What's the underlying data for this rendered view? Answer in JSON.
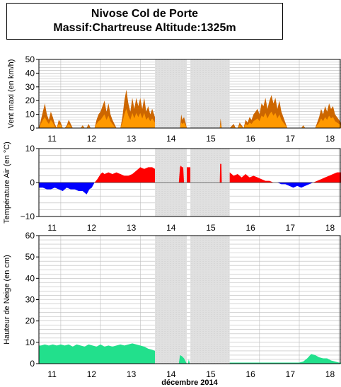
{
  "header": {
    "title": "Nivose Col de Porte",
    "subtitle": "Massif:Chartreuse Altitude:1325m"
  },
  "colors": {
    "wind_max": "#cc6600",
    "wind_mean": "#ff9900",
    "temp_pos": "#ff0000",
    "temp_neg": "#0000ff",
    "snow": "#22e08c",
    "missing": "#e0e0e0",
    "grid": "#bbbbbb"
  },
  "x_axis": {
    "label": "décembre 2014",
    "day_labels": [
      "11",
      "12",
      "13",
      "14",
      "15",
      "16",
      "17",
      "18"
    ],
    "day_values": [
      11,
      12,
      13,
      14,
      15,
      16,
      17,
      18
    ],
    "range": [
      10.45,
      18.05
    ]
  },
  "chart_data": [
    {
      "type": "area",
      "id": "wind",
      "ylabel": "Vent maxi (en km/h)",
      "ylim": [
        0,
        50
      ],
      "yticks": [
        0,
        10,
        20,
        30,
        40,
        50
      ],
      "grid": true,
      "missing_intervals": [
        [
          13.37,
          14.17
        ],
        [
          14.26,
          15.25
        ]
      ],
      "series": [
        {
          "role": "max",
          "x": [
            10.45,
            10.55,
            10.6,
            10.65,
            10.7,
            10.75,
            10.8,
            10.85,
            10.9,
            10.95,
            11.0,
            11.05,
            11.1,
            11.15,
            11.2,
            11.25,
            11.3,
            11.4,
            11.5,
            11.55,
            11.6,
            11.65,
            11.7,
            11.75,
            11.8,
            11.85,
            11.9,
            11.95,
            12.0,
            12.05,
            12.1,
            12.15,
            12.2,
            12.25,
            12.3,
            12.35,
            12.4,
            12.5,
            12.55,
            12.6,
            12.65,
            12.7,
            12.75,
            12.8,
            12.85,
            12.9,
            12.95,
            13.0,
            13.05,
            13.1,
            13.15,
            13.2,
            13.25,
            13.3,
            13.37
          ],
          "values": [
            0,
            12,
            18,
            10,
            6,
            12,
            8,
            3,
            0,
            6,
            4,
            0,
            0,
            2,
            6,
            3,
            0,
            0,
            0,
            2,
            0,
            0,
            3,
            0,
            0,
            0,
            6,
            10,
            12,
            16,
            20,
            12,
            18,
            10,
            6,
            3,
            0,
            0,
            8,
            20,
            28,
            18,
            12,
            22,
            14,
            22,
            16,
            22,
            14,
            22,
            12,
            16,
            10,
            14,
            8
          ]
        },
        {
          "role": "mean",
          "x": [
            10.45,
            10.55,
            10.6,
            10.65,
            10.7,
            10.75,
            10.8,
            10.85,
            10.9,
            10.95,
            11.0,
            11.05,
            11.1,
            11.15,
            11.2,
            11.25,
            11.3,
            11.4,
            11.5,
            11.55,
            11.6,
            11.65,
            11.7,
            11.75,
            11.8,
            11.85,
            11.9,
            11.95,
            12.0,
            12.05,
            12.1,
            12.15,
            12.2,
            12.25,
            12.3,
            12.35,
            12.4,
            12.5,
            12.55,
            12.6,
            12.65,
            12.7,
            12.75,
            12.8,
            12.85,
            12.9,
            12.95,
            13.0,
            13.05,
            13.1,
            13.15,
            13.2,
            13.25,
            13.3,
            13.37
          ],
          "values": [
            0,
            6,
            8,
            5,
            3,
            6,
            4,
            1,
            0,
            3,
            2,
            0,
            0,
            1,
            3,
            1,
            0,
            0,
            0,
            1,
            0,
            0,
            1,
            0,
            0,
            0,
            3,
            5,
            6,
            8,
            10,
            6,
            9,
            5,
            3,
            1,
            0,
            0,
            4,
            10,
            14,
            9,
            6,
            11,
            7,
            11,
            8,
            11,
            7,
            11,
            6,
            8,
            5,
            7,
            4
          ]
        },
        {
          "role": "max-b",
          "x": [
            14.0,
            14.03,
            14.06,
            14.1,
            14.14,
            14.17
          ],
          "values": [
            0,
            10,
            6,
            8,
            4,
            0
          ]
        },
        {
          "role": "mean-b",
          "x": [
            14.0,
            14.03,
            14.06,
            14.1,
            14.14,
            14.17
          ],
          "values": [
            0,
            4,
            3,
            4,
            2,
            0
          ]
        },
        {
          "role": "max-c",
          "x": [
            15.0,
            15.02,
            15.05
          ],
          "values": [
            0,
            7,
            0
          ]
        },
        {
          "role": "mean-c",
          "x": [
            15.0,
            15.02,
            15.05
          ],
          "values": [
            0,
            3,
            0
          ]
        },
        {
          "role": "max-d",
          "x": [
            15.25,
            15.35,
            15.4,
            15.45,
            15.5,
            15.55,
            15.6,
            15.65,
            15.7,
            15.75,
            15.8,
            15.85,
            15.9,
            15.95,
            16.0,
            16.05,
            16.1,
            16.15,
            16.2,
            16.25,
            16.3,
            16.35,
            16.4,
            16.45,
            16.5,
            16.55,
            16.6,
            16.65,
            16.7,
            16.75,
            16.8,
            16.85,
            16.9,
            16.95,
            17.0,
            17.05,
            17.1,
            17.15,
            17.2,
            17.25,
            17.3,
            17.35,
            17.4,
            17.45,
            17.5,
            17.55,
            17.6,
            17.65,
            17.7,
            17.75,
            17.8,
            17.85,
            17.9,
            17.95,
            18.0,
            18.05
          ],
          "values": [
            0,
            3,
            0,
            0,
            4,
            2,
            0,
            6,
            4,
            8,
            6,
            10,
            12,
            14,
            10,
            18,
            16,
            22,
            14,
            20,
            24,
            18,
            22,
            14,
            20,
            12,
            8,
            4,
            0,
            0,
            0,
            0,
            0,
            0,
            0,
            0,
            2,
            0,
            0,
            0,
            0,
            0,
            0,
            4,
            8,
            14,
            10,
            16,
            12,
            18,
            14,
            16,
            10,
            8,
            6,
            4
          ]
        },
        {
          "role": "mean-d",
          "x": [
            15.25,
            15.35,
            15.4,
            15.45,
            15.5,
            15.55,
            15.6,
            15.65,
            15.7,
            15.75,
            15.8,
            15.85,
            15.9,
            15.95,
            16.0,
            16.05,
            16.1,
            16.15,
            16.2,
            16.25,
            16.3,
            16.35,
            16.4,
            16.45,
            16.5,
            16.55,
            16.6,
            16.65,
            16.7,
            16.75,
            16.8,
            16.85,
            16.9,
            16.95,
            17.0,
            17.05,
            17.1,
            17.15,
            17.2,
            17.25,
            17.3,
            17.35,
            17.4,
            17.45,
            17.5,
            17.55,
            17.6,
            17.65,
            17.7,
            17.75,
            17.8,
            17.85,
            17.9,
            17.95,
            18.0,
            18.05
          ],
          "values": [
            0,
            1,
            0,
            0,
            2,
            1,
            0,
            3,
            2,
            4,
            3,
            5,
            6,
            7,
            5,
            9,
            8,
            11,
            7,
            10,
            12,
            9,
            11,
            7,
            10,
            6,
            4,
            2,
            0,
            0,
            0,
            0,
            0,
            0,
            0,
            0,
            1,
            0,
            0,
            0,
            0,
            0,
            0,
            2,
            4,
            7,
            5,
            8,
            6,
            9,
            7,
            8,
            5,
            4,
            3,
            2
          ]
        }
      ]
    },
    {
      "type": "area",
      "id": "temperature",
      "ylabel": "Température Air (en °C)",
      "ylim": [
        -10,
        10
      ],
      "yticks": [
        -10,
        0,
        10
      ],
      "grid": true,
      "missing_intervals": [
        [
          13.37,
          14.17
        ],
        [
          14.26,
          15.25
        ]
      ],
      "series": [
        {
          "role": "temp-a",
          "x": [
            10.45,
            10.55,
            10.65,
            10.75,
            10.85,
            10.95,
            11.05,
            11.15,
            11.25,
            11.35,
            11.45,
            11.55,
            11.65,
            11.72,
            11.78,
            11.85,
            11.92,
            12.0,
            12.05,
            12.1,
            12.2,
            12.3,
            12.4,
            12.5,
            12.6,
            12.7,
            12.8,
            12.9,
            13.0,
            13.1,
            13.2,
            13.3,
            13.37
          ],
          "values": [
            -1.5,
            -1.5,
            -2.0,
            -2.0,
            -1.5,
            -2.0,
            -2.5,
            -1.5,
            -2.0,
            -2.0,
            -2.5,
            -2.5,
            -3.5,
            -2.0,
            -1.5,
            0.0,
            1.0,
            2.5,
            3.0,
            2.5,
            3.0,
            2.5,
            3.0,
            2.5,
            2.0,
            2.0,
            2.5,
            3.5,
            4.5,
            4.0,
            4.5,
            4.5,
            4.0
          ]
        },
        {
          "role": "temp-b",
          "x": [
            13.97,
            14.0,
            14.02,
            14.05,
            14.08,
            14.1
          ],
          "values": [
            0,
            4.5,
            5.0,
            4.5,
            4.5,
            0
          ]
        },
        {
          "role": "temp-c",
          "x": [
            14.17,
            14.18,
            14.26
          ],
          "values": [
            4.5,
            4.5,
            4.5
          ]
        },
        {
          "role": "temp-d",
          "x": [
            15.0,
            15.01,
            15.04,
            15.05
          ],
          "values": [
            0,
            5.5,
            5.5,
            0
          ]
        },
        {
          "role": "temp-e",
          "x": [
            15.25,
            15.35,
            15.45,
            15.55,
            15.65,
            15.75,
            15.85,
            15.95,
            16.05,
            16.15,
            16.25,
            16.35,
            16.45,
            16.55,
            16.65,
            16.75,
            16.85,
            16.95,
            17.05,
            17.15,
            17.25,
            17.35,
            17.45,
            17.55,
            17.65,
            17.75,
            17.85,
            17.95,
            18.05
          ],
          "values": [
            3.0,
            2.0,
            2.5,
            1.5,
            2.5,
            1.5,
            2.0,
            1.5,
            1.0,
            0.5,
            0.5,
            0.0,
            0.0,
            -0.5,
            -0.5,
            -1.0,
            -1.5,
            -1.0,
            -1.5,
            -1.0,
            -0.5,
            0.0,
            0.5,
            1.0,
            1.5,
            2.0,
            2.5,
            3.0,
            3.0
          ]
        }
      ]
    },
    {
      "type": "area",
      "id": "snow",
      "ylabel": "Hauteur de Neige (en cm)",
      "ylim": [
        0,
        60
      ],
      "yticks": [
        0,
        10,
        20,
        30,
        40,
        50,
        60
      ],
      "grid": true,
      "missing_intervals": [
        [
          13.37,
          14.17
        ],
        [
          14.26,
          15.25
        ]
      ],
      "series": [
        {
          "role": "snow-a",
          "x": [
            10.45,
            10.5,
            10.6,
            10.7,
            10.8,
            10.9,
            11.0,
            11.1,
            11.2,
            11.3,
            11.4,
            11.5,
            11.6,
            11.7,
            11.8,
            11.9,
            12.0,
            12.1,
            12.2,
            12.3,
            12.4,
            12.5,
            12.6,
            12.7,
            12.8,
            12.9,
            13.0,
            13.1,
            13.2,
            13.3,
            13.37
          ],
          "values": [
            8.5,
            8.5,
            9,
            8.5,
            9,
            8.5,
            9,
            8.5,
            9,
            8,
            9,
            8.5,
            8,
            9,
            8.5,
            8,
            9,
            8,
            8.5,
            8,
            8.5,
            9,
            8.5,
            9,
            9.5,
            9,
            8.5,
            8,
            7,
            6.5,
            6
          ]
        },
        {
          "role": "snow-b",
          "x": [
            13.97,
            14.0,
            14.05,
            14.1,
            14.17
          ],
          "values": [
            0,
            4.0,
            3.5,
            2.5,
            0
          ]
        },
        {
          "role": "snow-c",
          "x": [
            14.2,
            14.22,
            14.25
          ],
          "values": [
            0,
            2.0,
            0
          ]
        },
        {
          "role": "snow-d",
          "x": [
            15.25,
            15.5,
            16.0,
            16.5,
            16.9,
            17.0,
            17.1,
            17.2,
            17.3,
            17.4,
            17.5,
            17.6,
            17.7,
            17.8,
            17.9,
            18.0,
            18.05
          ],
          "values": [
            0.5,
            0.5,
            0.5,
            0.5,
            0.5,
            0.5,
            1.0,
            2.5,
            4.5,
            4.0,
            3.0,
            2.5,
            2.5,
            1.5,
            1.0,
            0.5,
            0.5
          ]
        }
      ]
    }
  ]
}
